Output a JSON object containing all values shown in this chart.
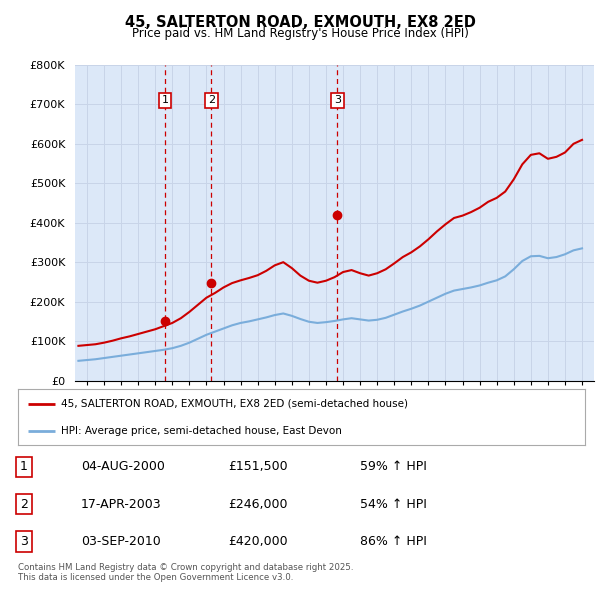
{
  "title": "45, SALTERTON ROAD, EXMOUTH, EX8 2ED",
  "subtitle": "Price paid vs. HM Land Registry's House Price Index (HPI)",
  "ylabel_ticks": [
    "£0",
    "£100K",
    "£200K",
    "£300K",
    "£400K",
    "£500K",
    "£600K",
    "£700K",
    "£800K"
  ],
  "ytick_vals": [
    0,
    100000,
    200000,
    300000,
    400000,
    500000,
    600000,
    700000,
    800000
  ],
  "ylim": [
    0,
    800000
  ],
  "xlim_start": 1995.3,
  "xlim_end": 2025.7,
  "sale_dates": [
    2000.58,
    2003.29,
    2010.67
  ],
  "sale_prices": [
    151500,
    246000,
    420000
  ],
  "sale_labels": [
    "1",
    "2",
    "3"
  ],
  "sale_label_yoffset": 710000,
  "red_color": "#cc0000",
  "blue_color": "#7aaddb",
  "vline_color": "#cc0000",
  "grid_color": "#c8d4e8",
  "bg_color": "#dce8f8",
  "legend1": "45, SALTERTON ROAD, EXMOUTH, EX8 2ED (semi-detached house)",
  "legend2": "HPI: Average price, semi-detached house, East Devon",
  "table_rows": [
    [
      "1",
      "04-AUG-2000",
      "£151,500",
      "59% ↑ HPI"
    ],
    [
      "2",
      "17-APR-2003",
      "£246,000",
      "54% ↑ HPI"
    ],
    [
      "3",
      "03-SEP-2010",
      "£420,000",
      "86% ↑ HPI"
    ]
  ],
  "footnote": "Contains HM Land Registry data © Crown copyright and database right 2025.\nThis data is licensed under the Open Government Licence v3.0.",
  "hpi_years": [
    1995.5,
    1996,
    1996.5,
    1997,
    1997.5,
    1998,
    1998.5,
    1999,
    1999.5,
    2000,
    2000.5,
    2001,
    2001.5,
    2002,
    2002.5,
    2003,
    2003.5,
    2004,
    2004.5,
    2005,
    2005.5,
    2006,
    2006.5,
    2007,
    2007.5,
    2008,
    2008.5,
    2009,
    2009.5,
    2010,
    2010.5,
    2011,
    2011.5,
    2012,
    2012.5,
    2013,
    2013.5,
    2014,
    2014.5,
    2015,
    2015.5,
    2016,
    2016.5,
    2017,
    2017.5,
    2018,
    2018.5,
    2019,
    2019.5,
    2020,
    2020.5,
    2021,
    2021.5,
    2022,
    2022.5,
    2023,
    2023.5,
    2024,
    2024.5,
    2025
  ],
  "hpi_values": [
    50000,
    52000,
    54000,
    57000,
    60000,
    63000,
    66000,
    69000,
    72000,
    75000,
    78000,
    82000,
    88000,
    96000,
    106000,
    116000,
    124000,
    132000,
    140000,
    146000,
    150000,
    155000,
    160000,
    166000,
    170000,
    164000,
    156000,
    149000,
    146000,
    148000,
    151000,
    155000,
    158000,
    155000,
    152000,
    154000,
    159000,
    167000,
    175000,
    182000,
    190000,
    200000,
    210000,
    220000,
    228000,
    232000,
    236000,
    241000,
    248000,
    254000,
    264000,
    282000,
    303000,
    315000,
    316000,
    310000,
    313000,
    320000,
    330000,
    335000
  ],
  "red_years": [
    1995.5,
    1996,
    1996.5,
    1997,
    1997.5,
    1998,
    1998.5,
    1999,
    1999.5,
    2000,
    2000.5,
    2001,
    2001.5,
    2002,
    2002.5,
    2003,
    2003.5,
    2004,
    2004.5,
    2005,
    2005.5,
    2006,
    2006.5,
    2007,
    2007.5,
    2008,
    2008.5,
    2009,
    2009.5,
    2010,
    2010.5,
    2011,
    2011.5,
    2012,
    2012.5,
    2013,
    2013.5,
    2014,
    2014.5,
    2015,
    2015.5,
    2016,
    2016.5,
    2017,
    2017.5,
    2018,
    2018.5,
    2019,
    2019.5,
    2020,
    2020.5,
    2021,
    2021.5,
    2022,
    2022.5,
    2023,
    2023.5,
    2024,
    2024.5,
    2025
  ],
  "red_values": [
    88000,
    90000,
    92000,
    96000,
    101000,
    107000,
    112000,
    118000,
    124000,
    130000,
    138000,
    146000,
    158000,
    174000,
    192000,
    210000,
    222000,
    236000,
    247000,
    254000,
    260000,
    267000,
    278000,
    292000,
    300000,
    285000,
    266000,
    253000,
    248000,
    253000,
    262000,
    275000,
    280000,
    272000,
    266000,
    272000,
    282000,
    297000,
    313000,
    325000,
    340000,
    358000,
    378000,
    396000,
    412000,
    418000,
    427000,
    438000,
    453000,
    463000,
    479000,
    510000,
    548000,
    572000,
    576000,
    562000,
    567000,
    578000,
    600000,
    610000
  ]
}
